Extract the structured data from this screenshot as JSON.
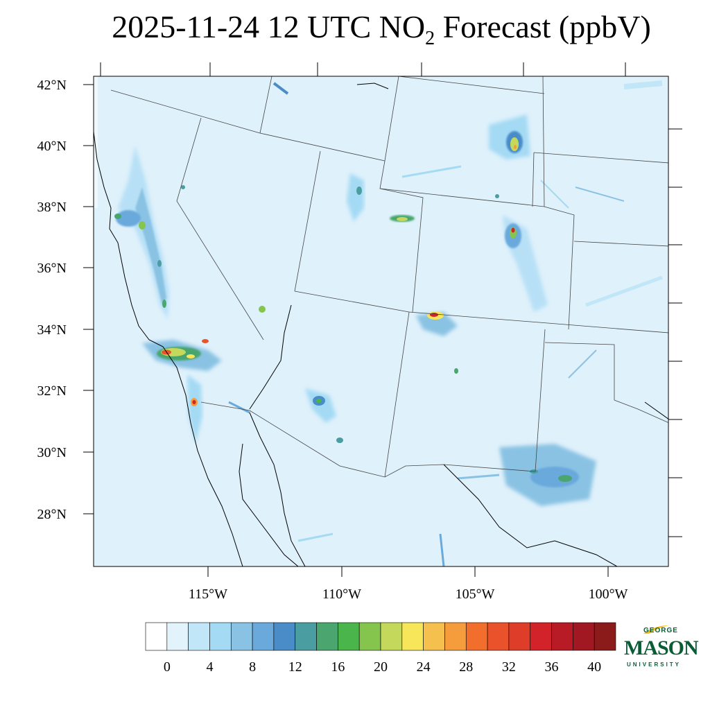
{
  "title": {
    "prefix": "2025-11-24 12 UTC NO",
    "subscript": "2",
    "suffix": " Forecast (ppbV)"
  },
  "map": {
    "lat_labels": [
      "42°N",
      "40°N",
      "38°N",
      "36°N",
      "34°N",
      "32°N",
      "30°N",
      "28°N"
    ],
    "lon_labels": [
      "115°W",
      "110°W",
      "105°W",
      "100°W"
    ],
    "background_color": "#dff1fb",
    "border_color": "#000000"
  },
  "colorbar": {
    "colors": [
      "#ffffff",
      "#e2f3fb",
      "#c1e6f8",
      "#a4daf4",
      "#89c2e3",
      "#6aa9dc",
      "#4a8cc8",
      "#4a9da0",
      "#4aa56e",
      "#4ab54a",
      "#86c54d",
      "#c4d85c",
      "#f7e65a",
      "#f6c04e",
      "#f59d3c",
      "#f26e2d",
      "#e9522a",
      "#de3d2a",
      "#d2232b",
      "#b81a26",
      "#a21822",
      "#8b1a1a"
    ],
    "tick_labels": [
      "0",
      "4",
      "8",
      "12",
      "16",
      "20",
      "24",
      "28",
      "32",
      "36",
      "40"
    ]
  },
  "logo": {
    "line1": "GEORGE",
    "line2": "MASON",
    "line3": "UNIVERSITY",
    "primary_color": "#0a5c36",
    "accent_color": "#f2c21a"
  }
}
